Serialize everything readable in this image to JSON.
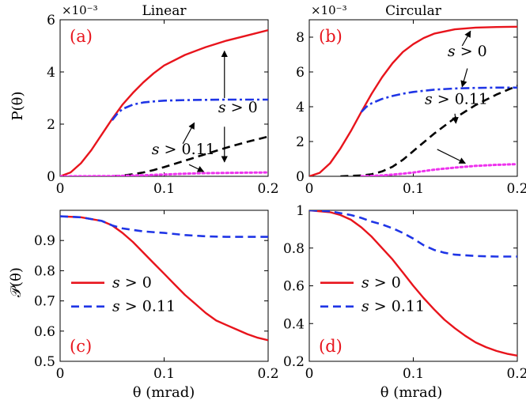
{
  "figure": {
    "x_axis_label": "θ (mrad)",
    "y_label_top": "P(θ)",
    "y_label_bottom": "𝒫(θ)",
    "colors": {
      "red": "#e8141c",
      "blue": "#1f35e6",
      "black": "#000000",
      "magenta": "#ee33ee"
    }
  },
  "chart_data": [
    {
      "id": "a",
      "type": "line",
      "panel_label": "(a)",
      "title": "Linear",
      "exponent_label": "×10⁻³",
      "xlim": [
        0,
        0.2
      ],
      "ylim": [
        0,
        6
      ],
      "xticks": [
        0,
        0.1,
        0.2
      ],
      "xtick_labels": [
        "0",
        "0.1",
        "0.2"
      ],
      "yticks": [
        0,
        2,
        4,
        6
      ],
      "ytick_labels": [
        "0",
        "2",
        "4",
        "6"
      ],
      "series": [
        {
          "name": "s > 0 (red)",
          "color": "red",
          "dash": "solid",
          "x": [
            0,
            0.01,
            0.02,
            0.03,
            0.04,
            0.05,
            0.06,
            0.07,
            0.08,
            0.09,
            0.1,
            0.12,
            0.14,
            0.16,
            0.18,
            0.2
          ],
          "y": [
            0,
            0.15,
            0.5,
            1.0,
            1.6,
            2.2,
            2.75,
            3.2,
            3.6,
            3.95,
            4.25,
            4.65,
            4.95,
            5.2,
            5.4,
            5.6
          ]
        },
        {
          "name": "s > 0 (blue)",
          "color": "blue",
          "dash": "dashdot",
          "x": [
            0.05,
            0.055,
            0.06,
            0.07,
            0.08,
            0.09,
            0.1,
            0.12,
            0.14,
            0.16,
            0.18,
            0.2
          ],
          "y": [
            2.15,
            2.4,
            2.58,
            2.75,
            2.83,
            2.87,
            2.9,
            2.92,
            2.93,
            2.94,
            2.94,
            2.94
          ]
        },
        {
          "name": "s > 0.11 (black)",
          "color": "black",
          "dash": "dashed",
          "x": [
            0.05,
            0.06,
            0.07,
            0.08,
            0.09,
            0.1,
            0.12,
            0.14,
            0.16,
            0.18,
            0.2
          ],
          "y": [
            0.0,
            0.03,
            0.08,
            0.15,
            0.24,
            0.35,
            0.6,
            0.85,
            1.1,
            1.32,
            1.52
          ]
        },
        {
          "name": "s > 0.11 (magenta)",
          "color": "magenta",
          "dash": "dotted",
          "x": [
            0,
            0.05,
            0.08,
            0.1,
            0.12,
            0.14,
            0.16,
            0.18,
            0.2
          ],
          "y": [
            0.0,
            0.01,
            0.04,
            0.07,
            0.1,
            0.12,
            0.13,
            0.14,
            0.15
          ]
        }
      ],
      "annotations": [
        {
          "text": "s > 0",
          "x": 0.152,
          "y": 2.45,
          "color": "black",
          "arrows": [
            {
              "from": [
                0.158,
                3.0
              ],
              "to": [
                0.158,
                4.8
              ]
            },
            {
              "from": [
                0.158,
                1.9
              ],
              "to": [
                0.158,
                0.55
              ]
            }
          ]
        },
        {
          "text": "s > 0.11",
          "x": 0.088,
          "y": 0.85,
          "color": "black",
          "arrows": [
            {
              "from": [
                0.118,
                1.25
              ],
              "to": [
                0.129,
                2.05
              ]
            },
            {
              "from": [
                0.124,
                0.45
              ],
              "to": [
                0.138,
                0.18
              ]
            }
          ]
        }
      ]
    },
    {
      "id": "b",
      "type": "line",
      "panel_label": "(b)",
      "title": "Circular",
      "exponent_label": "×10⁻³",
      "xlim": [
        0,
        0.2
      ],
      "ylim": [
        0,
        9
      ],
      "xticks": [
        0,
        0.1,
        0.2
      ],
      "xtick_labels": [
        "0",
        "0.1",
        "0.2"
      ],
      "yticks": [
        0,
        2,
        4,
        6,
        8
      ],
      "ytick_labels": [
        "0",
        "2",
        "4",
        "6",
        "8"
      ],
      "series": [
        {
          "name": "s > 0 (red)",
          "color": "red",
          "dash": "solid",
          "x": [
            0,
            0.01,
            0.02,
            0.03,
            0.04,
            0.05,
            0.06,
            0.07,
            0.08,
            0.09,
            0.1,
            0.11,
            0.12,
            0.14,
            0.16,
            0.18,
            0.2
          ],
          "y": [
            0,
            0.2,
            0.75,
            1.6,
            2.6,
            3.7,
            4.75,
            5.7,
            6.5,
            7.15,
            7.6,
            7.95,
            8.2,
            8.45,
            8.55,
            8.58,
            8.6
          ]
        },
        {
          "name": "s > 0 (blue)",
          "color": "blue",
          "dash": "dashdot",
          "x": [
            0.05,
            0.055,
            0.06,
            0.07,
            0.08,
            0.09,
            0.1,
            0.12,
            0.14,
            0.16,
            0.18,
            0.2
          ],
          "y": [
            3.7,
            4.0,
            4.2,
            4.45,
            4.62,
            4.75,
            4.85,
            4.98,
            5.05,
            5.08,
            5.1,
            5.1
          ]
        },
        {
          "name": "s > 0.11 (black)",
          "color": "black",
          "dash": "dashed",
          "x": [
            0.03,
            0.05,
            0.06,
            0.07,
            0.08,
            0.09,
            0.1,
            0.12,
            0.14,
            0.16,
            0.18,
            0.2
          ],
          "y": [
            0.0,
            0.05,
            0.12,
            0.28,
            0.55,
            0.95,
            1.45,
            2.45,
            3.35,
            4.1,
            4.7,
            5.2
          ]
        },
        {
          "name": "s > 0.11 (magenta)",
          "color": "magenta",
          "dash": "dotted",
          "x": [
            0.05,
            0.07,
            0.09,
            0.1,
            0.12,
            0.14,
            0.16,
            0.18,
            0.2
          ],
          "y": [
            0.0,
            0.05,
            0.15,
            0.22,
            0.38,
            0.5,
            0.6,
            0.66,
            0.7
          ]
        }
      ],
      "annotations": [
        {
          "text": "s > 0",
          "x": 0.133,
          "y": 6.9,
          "color": "black",
          "arrows": [
            {
              "from": [
                0.147,
                7.5
              ],
              "to": [
                0.155,
                8.35
              ]
            },
            {
              "from": [
                0.152,
                6.2
              ],
              "to": [
                0.147,
                5.15
              ]
            }
          ]
        },
        {
          "text": "s > 0.11",
          "x": 0.111,
          "y": 4.15,
          "color": "black",
          "arrows": [
            {
              "from": [
                0.14,
                3.6
              ],
              "to": [
                0.141,
                3.05
              ]
            },
            {
              "from": [
                0.123,
                1.55
              ],
              "to": [
                0.15,
                0.75
              ]
            }
          ]
        }
      ]
    },
    {
      "id": "c",
      "type": "line",
      "panel_label": "(c)",
      "xlim": [
        0,
        0.2
      ],
      "ylim": [
        0.5,
        1.0
      ],
      "xticks": [
        0,
        0.1,
        0.2
      ],
      "xtick_labels": [
        "0",
        "0.1",
        "0.2"
      ],
      "yticks": [
        0.5,
        0.6,
        0.7,
        0.8,
        0.9
      ],
      "ytick_labels": [
        "0.5",
        "0.6",
        "0.7",
        "0.8",
        "0.9"
      ],
      "series": [
        {
          "name": "s > 0",
          "color": "red",
          "dash": "solid",
          "x": [
            0,
            0.02,
            0.04,
            0.05,
            0.06,
            0.07,
            0.08,
            0.09,
            0.1,
            0.11,
            0.12,
            0.13,
            0.14,
            0.15,
            0.16,
            0.17,
            0.18,
            0.19,
            0.2
          ],
          "y": [
            0.98,
            0.977,
            0.965,
            0.95,
            0.925,
            0.895,
            0.86,
            0.825,
            0.79,
            0.755,
            0.72,
            0.69,
            0.66,
            0.635,
            0.62,
            0.605,
            0.59,
            0.578,
            0.57
          ]
        },
        {
          "name": "s > 0.11",
          "color": "blue",
          "dash": "dashed",
          "x": [
            0,
            0.02,
            0.04,
            0.05,
            0.06,
            0.08,
            0.1,
            0.12,
            0.14,
            0.16,
            0.18,
            0.2
          ],
          "y": [
            0.98,
            0.977,
            0.965,
            0.95,
            0.94,
            0.93,
            0.925,
            0.918,
            0.914,
            0.912,
            0.912,
            0.912
          ]
        }
      ],
      "legend": [
        {
          "label": "s > 0",
          "color": "red",
          "dash": "solid"
        },
        {
          "label": "s > 0.11",
          "color": "blue",
          "dash": "dashed"
        }
      ]
    },
    {
      "id": "d",
      "type": "line",
      "panel_label": "(d)",
      "xlim": [
        0,
        0.2
      ],
      "ylim": [
        0.2,
        1.0
      ],
      "xticks": [
        0,
        0.1,
        0.2
      ],
      "xtick_labels": [
        "0",
        "0.1",
        "0.2"
      ],
      "yticks": [
        0.2,
        0.4,
        0.6,
        0.8,
        1.0
      ],
      "ytick_labels": [
        "0.2",
        "0.4",
        "0.6",
        "0.8",
        "1"
      ],
      "series": [
        {
          "name": "s > 0",
          "color": "red",
          "dash": "solid",
          "x": [
            0,
            0.02,
            0.03,
            0.04,
            0.05,
            0.06,
            0.07,
            0.08,
            0.09,
            0.1,
            0.11,
            0.12,
            0.13,
            0.14,
            0.15,
            0.16,
            0.17,
            0.18,
            0.19,
            0.2
          ],
          "y": [
            1.0,
            0.99,
            0.975,
            0.95,
            0.91,
            0.86,
            0.8,
            0.74,
            0.67,
            0.6,
            0.535,
            0.475,
            0.42,
            0.375,
            0.335,
            0.3,
            0.275,
            0.255,
            0.24,
            0.23
          ]
        },
        {
          "name": "s > 0.11",
          "color": "blue",
          "dash": "dashed",
          "x": [
            0,
            0.02,
            0.04,
            0.05,
            0.06,
            0.07,
            0.08,
            0.09,
            0.1,
            0.11,
            0.12,
            0.13,
            0.14,
            0.16,
            0.18,
            0.2
          ],
          "y": [
            1.0,
            0.995,
            0.975,
            0.96,
            0.94,
            0.925,
            0.905,
            0.88,
            0.85,
            0.815,
            0.79,
            0.775,
            0.765,
            0.758,
            0.755,
            0.755
          ]
        }
      ],
      "legend": [
        {
          "label": "s > 0",
          "color": "red",
          "dash": "solid"
        },
        {
          "label": "s > 0.11",
          "color": "blue",
          "dash": "dashed"
        }
      ]
    }
  ]
}
